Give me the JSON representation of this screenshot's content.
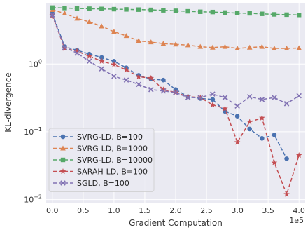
{
  "chart_data": {
    "type": "line",
    "xlabel": "Gradient Computation",
    "ylabel": "KL-divergence",
    "x_multiplier_label": "1e5",
    "xlim": [
      -0.1,
      4.1
    ],
    "ylim": [
      0.009,
      8.0
    ],
    "yscale": "log",
    "grid": true,
    "legend_position": "bottom-left",
    "x_ticks": [
      {
        "value": 0.0,
        "label": "0.0"
      },
      {
        "value": 0.5,
        "label": "0.5"
      },
      {
        "value": 1.0,
        "label": "1.0"
      },
      {
        "value": 1.5,
        "label": "1.5"
      },
      {
        "value": 2.0,
        "label": "2.0"
      },
      {
        "value": 2.5,
        "label": "2.5"
      },
      {
        "value": 3.0,
        "label": "3.0"
      },
      {
        "value": 3.5,
        "label": "3.5"
      },
      {
        "value": 4.0,
        "label": "4.0"
      }
    ],
    "y_ticks": [
      {
        "value": 1,
        "base": "10",
        "exp": "0"
      },
      {
        "value": 0.1,
        "base": "10",
        "exp": "−1"
      },
      {
        "value": 0.01,
        "base": "10",
        "exp": "−2"
      }
    ],
    "series": [
      {
        "name": "SVRG-LD, B=100",
        "color": "#4a72b0",
        "marker": "circle",
        "x": [
          0,
          0.2,
          0.4,
          0.6,
          0.8,
          1.0,
          1.2,
          1.4,
          1.6,
          1.8,
          2.0,
          2.2,
          2.4,
          2.6,
          2.8,
          3.0,
          3.2,
          3.4,
          3.6,
          3.8
        ],
        "y": [
          5.6,
          1.8,
          1.6,
          1.4,
          1.25,
          1.1,
          0.88,
          0.68,
          0.6,
          0.58,
          0.42,
          0.33,
          0.31,
          0.3,
          0.2,
          0.17,
          0.11,
          0.08,
          0.09,
          0.04
        ]
      },
      {
        "name": "SVRG-LD, B=1000",
        "color": "#dd8452",
        "marker": "triangle",
        "x": [
          0,
          0.2,
          0.4,
          0.6,
          0.8,
          1.0,
          1.2,
          1.4,
          1.6,
          1.8,
          2.0,
          2.2,
          2.4,
          2.6,
          2.8,
          3.0,
          3.2,
          3.4,
          3.6,
          3.8,
          4.0
        ],
        "y": [
          6.3,
          5.6,
          4.7,
          4.2,
          3.6,
          3.0,
          2.6,
          2.2,
          2.1,
          2.0,
          1.95,
          1.9,
          1.8,
          1.75,
          1.8,
          1.7,
          1.75,
          1.8,
          1.7,
          1.7,
          1.72
        ]
      },
      {
        "name": "SVRG-LD, B=10000",
        "color": "#55a868",
        "marker": "square",
        "x": [
          0,
          0.2,
          0.4,
          0.6,
          0.8,
          1.0,
          1.2,
          1.4,
          1.6,
          1.8,
          2.0,
          2.2,
          2.4,
          2.6,
          2.8,
          3.0,
          3.2,
          3.4,
          3.6,
          3.8,
          4.0
        ],
        "y": [
          6.8,
          6.7,
          6.6,
          6.55,
          6.5,
          6.45,
          6.4,
          6.35,
          6.3,
          6.2,
          6.1,
          6.0,
          5.9,
          5.85,
          5.75,
          5.65,
          5.6,
          5.5,
          5.4,
          5.35,
          5.3
        ]
      },
      {
        "name": "SARAH-LD, B=100",
        "color": "#c44e52",
        "marker": "star",
        "x": [
          0,
          0.2,
          0.4,
          0.6,
          0.8,
          1.0,
          1.2,
          1.4,
          1.6,
          1.8,
          2.0,
          2.2,
          2.4,
          2.6,
          2.8,
          3.0,
          3.2,
          3.4,
          3.6,
          3.8,
          4.0
        ],
        "y": [
          5.2,
          1.7,
          1.55,
          1.3,
          1.1,
          0.98,
          0.82,
          0.65,
          0.62,
          0.42,
          0.38,
          0.33,
          0.32,
          0.25,
          0.22,
          0.07,
          0.14,
          0.16,
          0.035,
          0.012,
          0.045
        ]
      },
      {
        "name": "SGLD, B=100",
        "color": "#8172b3",
        "marker": "x",
        "x": [
          0,
          0.2,
          0.4,
          0.6,
          0.8,
          1.0,
          1.2,
          1.4,
          1.6,
          1.8,
          2.0,
          2.2,
          2.4,
          2.6,
          2.8,
          3.0,
          3.2,
          3.4,
          3.6,
          3.8,
          4.0
        ],
        "y": [
          5.3,
          1.75,
          1.45,
          1.1,
          0.85,
          0.66,
          0.58,
          0.5,
          0.42,
          0.4,
          0.38,
          0.32,
          0.32,
          0.36,
          0.32,
          0.24,
          0.33,
          0.3,
          0.32,
          0.26,
          0.34
        ]
      }
    ]
  }
}
